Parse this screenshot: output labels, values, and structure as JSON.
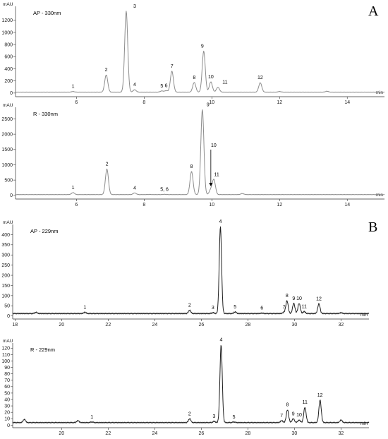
{
  "panels": [
    {
      "letter": "A",
      "charts": [
        {
          "trace_title": "AP - 330nm",
          "y_unit": "mAU",
          "x_unit": "min",
          "xlim": [
            4.2,
            15.1
          ],
          "ylim": [
            -60,
            1430
          ],
          "xticks": [
            6,
            8,
            10,
            12,
            14
          ],
          "yticks": [
            0,
            200,
            400,
            600,
            800,
            1000,
            1200
          ],
          "baseline": 15,
          "width": 0.045,
          "peaks": [
            {
              "label": "1",
              "t": 5.9,
              "h": 25
            },
            {
              "label": "2",
              "t": 6.88,
              "h": 300
            },
            {
              "label": "3",
              "t": 7.47,
              "h": 1350
            },
            {
              "label": "4",
              "t": 7.72,
              "h": 55
            },
            {
              "label": "5",
              "t": 8.52,
              "h": 35
            },
            {
              "label": "6",
              "t": 8.65,
              "h": 40
            },
            {
              "label": "7",
              "t": 8.82,
              "h": 360
            },
            {
              "label": "8",
              "t": 9.48,
              "h": 175
            },
            {
              "label": "9",
              "t": 9.76,
              "h": 690
            },
            {
              "label": "10",
              "t": 9.97,
              "h": 185
            },
            {
              "label": "11",
              "t": 10.18,
              "h": 95
            },
            {
              "label": "12",
              "t": 11.43,
              "h": 170
            }
          ],
          "extra": [
            {
              "t": 12.0,
              "h": 25
            },
            {
              "t": 13.4,
              "h": 30
            }
          ]
        },
        {
          "trace_title": "R - 330nm",
          "y_unit": "mAU",
          "x_unit": "min",
          "xlim": [
            4.2,
            15.1
          ],
          "ylim": [
            -120,
            2880
          ],
          "xticks": [
            6,
            8,
            10,
            12,
            14
          ],
          "yticks": [
            0,
            500,
            1000,
            1500,
            2000,
            2500
          ],
          "baseline": 25,
          "width": 0.045,
          "peaks": [
            {
              "label": "1",
              "t": 5.9,
              "h": 90
            },
            {
              "label": "2",
              "t": 6.9,
              "h": 860
            },
            {
              "label": "4",
              "t": 7.72,
              "h": 80
            },
            {
              "label": "5, 6",
              "t": 8.6,
              "h": 35
            },
            {
              "label": "8",
              "t": 9.4,
              "h": 780
            },
            {
              "label": "9",
              "t": 9.72,
              "h": 2800
            },
            {
              "label": "10",
              "t": 9.97,
              "h": 180
            },
            {
              "label": "11",
              "t": 10.06,
              "h": 510
            }
          ],
          "extra": [
            {
              "t": 8.15,
              "h": 30
            },
            {
              "t": 10.9,
              "h": 60
            }
          ]
        }
      ]
    },
    {
      "letter": "B",
      "charts": [
        {
          "trace_title": "AP - 229nm",
          "y_unit": "mAU",
          "x_unit": "min",
          "xlim": [
            17.9,
            33.2
          ],
          "ylim": [
            -15,
            450
          ],
          "xticks": [
            18,
            20,
            22,
            24,
            26,
            28,
            30,
            32
          ],
          "yticks": [
            0,
            50,
            100,
            150,
            200,
            250,
            300,
            350,
            400
          ],
          "baseline": 12,
          "width": 0.05,
          "peaks": [
            {
              "label": "1",
              "t": 21.0,
              "h": 18
            },
            {
              "label": "2",
              "t": 25.5,
              "h": 28
            },
            {
              "label": "3",
              "t": 26.5,
              "h": 16
            },
            {
              "label": "4",
              "t": 26.82,
              "h": 440
            },
            {
              "label": "5",
              "t": 27.45,
              "h": 20
            },
            {
              "label": "6",
              "t": 28.6,
              "h": 14
            },
            {
              "label": "7",
              "t": 29.55,
              "h": 18
            },
            {
              "label": "8",
              "t": 29.68,
              "h": 75
            },
            {
              "label": "9",
              "t": 29.97,
              "h": 62
            },
            {
              "label": "10",
              "t": 30.2,
              "h": 62
            },
            {
              "label": "11",
              "t": 30.42,
              "h": 22
            },
            {
              "label": "12",
              "t": 31.05,
              "h": 60
            }
          ],
          "extra": [
            {
              "t": 18.9,
              "h": 18
            },
            {
              "t": 32.0,
              "h": 16
            }
          ]
        },
        {
          "trace_title": "R - 229nm",
          "y_unit": "mAU",
          "x_unit": "min",
          "xlim": [
            17.9,
            33.2
          ],
          "ylim": [
            -4,
            128
          ],
          "xticks": [
            20,
            22,
            24,
            26,
            28,
            30,
            32
          ],
          "yticks": [
            0,
            10,
            20,
            30,
            40,
            50,
            60,
            70,
            80,
            90,
            100,
            110,
            120
          ],
          "baseline": 4,
          "width": 0.05,
          "peaks": [
            {
              "label": "1",
              "t": 21.3,
              "h": 5
            },
            {
              "label": "2",
              "t": 25.5,
              "h": 10
            },
            {
              "label": "3",
              "t": 26.55,
              "h": 6
            },
            {
              "label": "4",
              "t": 26.85,
              "h": 125
            },
            {
              "label": "5",
              "t": 27.4,
              "h": 5
            },
            {
              "label": "7",
              "t": 29.45,
              "h": 7
            },
            {
              "label": "8",
              "t": 29.7,
              "h": 24
            },
            {
              "label": "9",
              "t": 29.95,
              "h": 10
            },
            {
              "label": "10",
              "t": 30.2,
              "h": 8
            },
            {
              "label": "11",
              "t": 30.45,
              "h": 28
            },
            {
              "label": "12",
              "t": 31.1,
              "h": 39
            }
          ],
          "extra": [
            {
              "t": 18.4,
              "h": 9
            },
            {
              "t": 20.7,
              "h": 7
            },
            {
              "t": 32.0,
              "h": 8
            }
          ]
        }
      ]
    }
  ],
  "annotations": [
    {
      "chart": 1,
      "peak_label": "10",
      "type": "arrow"
    }
  ],
  "chart_data": [
    {
      "type": "line",
      "title": "AP - 330nm",
      "ylabel": "mAU",
      "xlabel": "min",
      "xlim": [
        4.2,
        15.1
      ],
      "ylim": [
        -60,
        1430
      ],
      "grid": false,
      "peaks_x": [
        5.9,
        6.88,
        7.47,
        7.72,
        8.52,
        8.65,
        8.82,
        9.48,
        9.76,
        9.97,
        10.18,
        11.43
      ],
      "peaks_y": [
        25,
        300,
        1350,
        55,
        35,
        40,
        360,
        175,
        690,
        185,
        95,
        170
      ],
      "peak_labels": [
        "1",
        "2",
        "3",
        "4",
        "5",
        "6",
        "7",
        "8",
        "9",
        "10",
        "11",
        "12"
      ]
    },
    {
      "type": "line",
      "title": "R - 330nm",
      "ylabel": "mAU",
      "xlabel": "min",
      "xlim": [
        4.2,
        15.1
      ],
      "ylim": [
        -120,
        2880
      ],
      "grid": false,
      "peaks_x": [
        5.9,
        6.9,
        7.72,
        8.6,
        9.4,
        9.72,
        9.97,
        10.06
      ],
      "peaks_y": [
        90,
        860,
        80,
        35,
        780,
        2800,
        180,
        510
      ],
      "peak_labels": [
        "1",
        "2",
        "4",
        "5, 6",
        "8",
        "9",
        "10",
        "11"
      ]
    },
    {
      "type": "line",
      "title": "AP - 229nm",
      "ylabel": "mAU",
      "xlabel": "min",
      "xlim": [
        17.9,
        33.2
      ],
      "ylim": [
        -15,
        450
      ],
      "grid": false,
      "peaks_x": [
        21.0,
        25.5,
        26.5,
        26.82,
        27.45,
        28.6,
        29.55,
        29.68,
        29.97,
        30.2,
        30.42,
        31.05
      ],
      "peaks_y": [
        18,
        28,
        16,
        440,
        20,
        14,
        18,
        75,
        62,
        62,
        22,
        60
      ],
      "peak_labels": [
        "1",
        "2",
        "3",
        "4",
        "5",
        "6",
        "7",
        "8",
        "9",
        "10",
        "11",
        "12"
      ]
    },
    {
      "type": "line",
      "title": "R - 229nm",
      "ylabel": "mAU",
      "xlabel": "min",
      "xlim": [
        17.9,
        33.2
      ],
      "ylim": [
        -4,
        128
      ],
      "grid": false,
      "peaks_x": [
        21.3,
        25.5,
        26.55,
        26.85,
        27.4,
        29.45,
        29.7,
        29.95,
        30.2,
        30.45,
        31.1
      ],
      "peaks_y": [
        5,
        10,
        6,
        125,
        5,
        7,
        24,
        10,
        8,
        28,
        39
      ],
      "peak_labels": [
        "1",
        "2",
        "3",
        "4",
        "5",
        "7",
        "8",
        "9",
        "10",
        "11",
        "12"
      ]
    }
  ]
}
